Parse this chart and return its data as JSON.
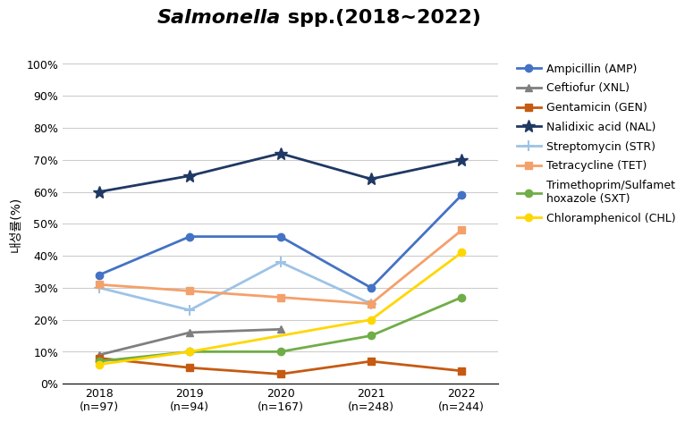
{
  "title_italic": "Salmonella",
  "title_rest": " spp.(2018~2022)",
  "years": [
    2018,
    2019,
    2020,
    2021,
    2022
  ],
  "x_labels": [
    "2018\n(n=97)",
    "2019\n(n=94)",
    "2020\n(n=167)",
    "2021\n(n=248)",
    "2022\n(n=244)"
  ],
  "ylabel": "내성률(%)",
  "ylim": [
    0,
    100
  ],
  "yticks": [
    0,
    10,
    20,
    30,
    40,
    50,
    60,
    70,
    80,
    90,
    100
  ],
  "ytick_labels": [
    "0%",
    "10%",
    "20%",
    "30%",
    "40%",
    "50%",
    "60%",
    "70%",
    "80%",
    "90%",
    "100%"
  ],
  "series": [
    {
      "label": "Ampicillin (AMP)",
      "values": [
        34,
        46,
        46,
        30,
        59
      ],
      "color": "#4472C4",
      "marker": "o",
      "linewidth": 2.0,
      "markersize": 6,
      "linestyle": "-"
    },
    {
      "label": "Ceftiofur (XNL)",
      "values": [
        9,
        16,
        17,
        null,
        null
      ],
      "color": "#7F7F7F",
      "marker": "^",
      "linewidth": 2.0,
      "markersize": 6,
      "linestyle": "-"
    },
    {
      "label": "Gentamicin (GEN)",
      "values": [
        8,
        5,
        3,
        7,
        4
      ],
      "color": "#C55A11",
      "marker": "s",
      "linewidth": 2.0,
      "markersize": 6,
      "linestyle": "-"
    },
    {
      "label": "Nalidixic acid (NAL)",
      "values": [
        60,
        65,
        72,
        64,
        70
      ],
      "color": "#1F3864",
      "marker": "*",
      "linewidth": 2.0,
      "markersize": 10,
      "linestyle": "-"
    },
    {
      "label": "Streptomycin (STR)",
      "values": [
        30,
        23,
        38,
        25,
        null
      ],
      "color": "#9DC3E6",
      "marker": "+",
      "linewidth": 2.0,
      "markersize": 9,
      "linestyle": "-",
      "markeredgewidth": 1.5
    },
    {
      "label": "Tetracycline (TET)",
      "values": [
        31,
        29,
        27,
        25,
        48
      ],
      "color": "#F4A06B",
      "marker": "s",
      "linewidth": 2.0,
      "markersize": 6,
      "linestyle": "-"
    },
    {
      "label": "Trimethoprim/Sulfamet\nhoxazole (SXT)",
      "values": [
        7,
        10,
        10,
        15,
        27
      ],
      "color": "#70AD47",
      "marker": "o",
      "linewidth": 2.0,
      "markersize": 6,
      "linestyle": "-"
    },
    {
      "label": "Chloramphenicol (CHL)",
      "values": [
        6,
        10,
        null,
        20,
        41
      ],
      "color": "#FFD700",
      "marker": "o",
      "linewidth": 2.0,
      "markersize": 6,
      "linestyle": "-"
    }
  ]
}
